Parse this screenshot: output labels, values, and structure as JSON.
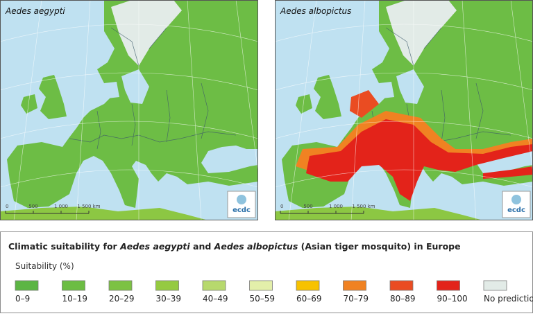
{
  "maps": [
    {
      "title": "Aedes aegypti",
      "scale_labels": [
        "0",
        "500",
        "1 000",
        "1 500 km"
      ],
      "logo": "ecdc"
    },
    {
      "title": "Aedes albopictus",
      "scale_labels": [
        "0",
        "500",
        "1 000",
        "1 500 km"
      ],
      "logo": "ecdc"
    }
  ],
  "legend": {
    "title": [
      {
        "text": "Climatic suitability for ",
        "italic": false
      },
      {
        "text": "Aedes aegypti",
        "italic": true
      },
      {
        "text": " and ",
        "italic": false
      },
      {
        "text": "Aedes albopictus",
        "italic": true
      },
      {
        "text": " (Asian tiger mosquito) in Europe",
        "italic": false
      }
    ],
    "subtitle": "Suitability (%)",
    "items": [
      {
        "label": "0–9",
        "color": "#5cb544"
      },
      {
        "label": "10–19",
        "color": "#6cbd43"
      },
      {
        "label": "20–29",
        "color": "#7cc243"
      },
      {
        "label": "30–39",
        "color": "#95ca41"
      },
      {
        "label": "40–49",
        "color": "#b7d96d"
      },
      {
        "label": "50–59",
        "color": "#e3efaa"
      },
      {
        "label": "60–69",
        "color": "#f7c200"
      },
      {
        "label": "70–79",
        "color": "#f08222"
      },
      {
        "label": "80–89",
        "color": "#ea4c22"
      },
      {
        "label": "90–100",
        "color": "#e3231a"
      },
      {
        "label": "No prediction",
        "color": "#e2ebe7"
      }
    ]
  }
}
